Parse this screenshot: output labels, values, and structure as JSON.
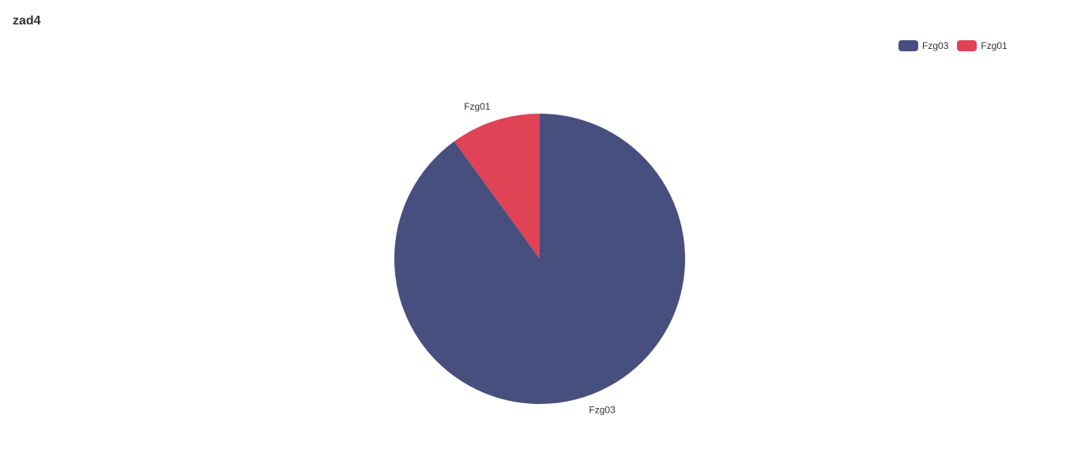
{
  "title": "zad4",
  "chart_data": {
    "type": "pie",
    "categories": [
      "Fzg03",
      "Fzg01"
    ],
    "values": [
      90,
      10
    ],
    "colors": [
      "#464f7e",
      "#e04356"
    ],
    "legend": {
      "placement": "top-right",
      "entries": [
        "Fzg03",
        "Fzg01"
      ]
    }
  }
}
